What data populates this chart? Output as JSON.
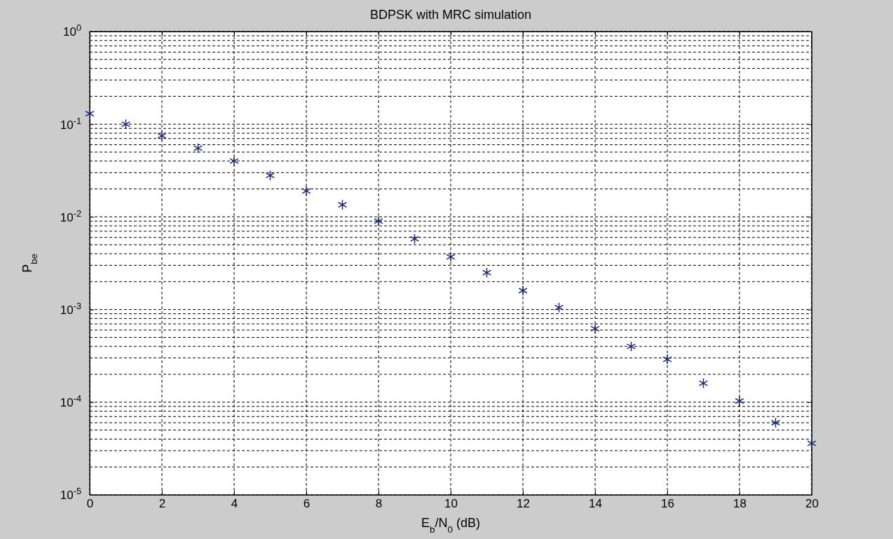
{
  "chart_data": {
    "type": "scatter",
    "title": "BDPSK with MRC simulation",
    "xlabel": "E$_{b}$/N$_{0}$ (dB)",
    "ylabel": "P$_{be}$",
    "x": [
      0,
      1,
      2,
      3,
      4,
      5,
      6,
      7,
      8,
      9,
      10,
      11,
      12,
      13,
      14,
      15,
      16,
      17,
      18,
      19,
      20
    ],
    "series": [
      {
        "color": "#1a2a78",
        "values": [
          0.13,
          0.1,
          0.075,
          0.055,
          0.04,
          0.028,
          0.019,
          0.0135,
          0.009,
          0.0058,
          0.0037,
          0.0025,
          0.0016,
          0.00105,
          0.00062,
          0.0004,
          0.00029,
          0.00016,
          0.000103,
          6e-05,
          3.6e-05
        ]
      }
    ],
    "xlim": [
      0,
      20
    ],
    "xticks": [
      0,
      2,
      4,
      6,
      8,
      10,
      12,
      14,
      16,
      18,
      20
    ],
    "ylim": [
      1e-05,
      1
    ],
    "yticks": [
      {
        "value": 1e-05,
        "label": "10$^{-5}$"
      },
      {
        "value": 0.0001,
        "label": "10$^{-4}$"
      },
      {
        "value": 0.001,
        "label": "10$^{-3}$"
      },
      {
        "value": 0.01,
        "label": "10$^{-2}$"
      },
      {
        "value": 0.1,
        "label": "10$^{-1}$"
      },
      {
        "value": 1,
        "label": "10$^{0}$"
      }
    ],
    "log": true,
    "grid": true,
    "marker": "cross"
  }
}
